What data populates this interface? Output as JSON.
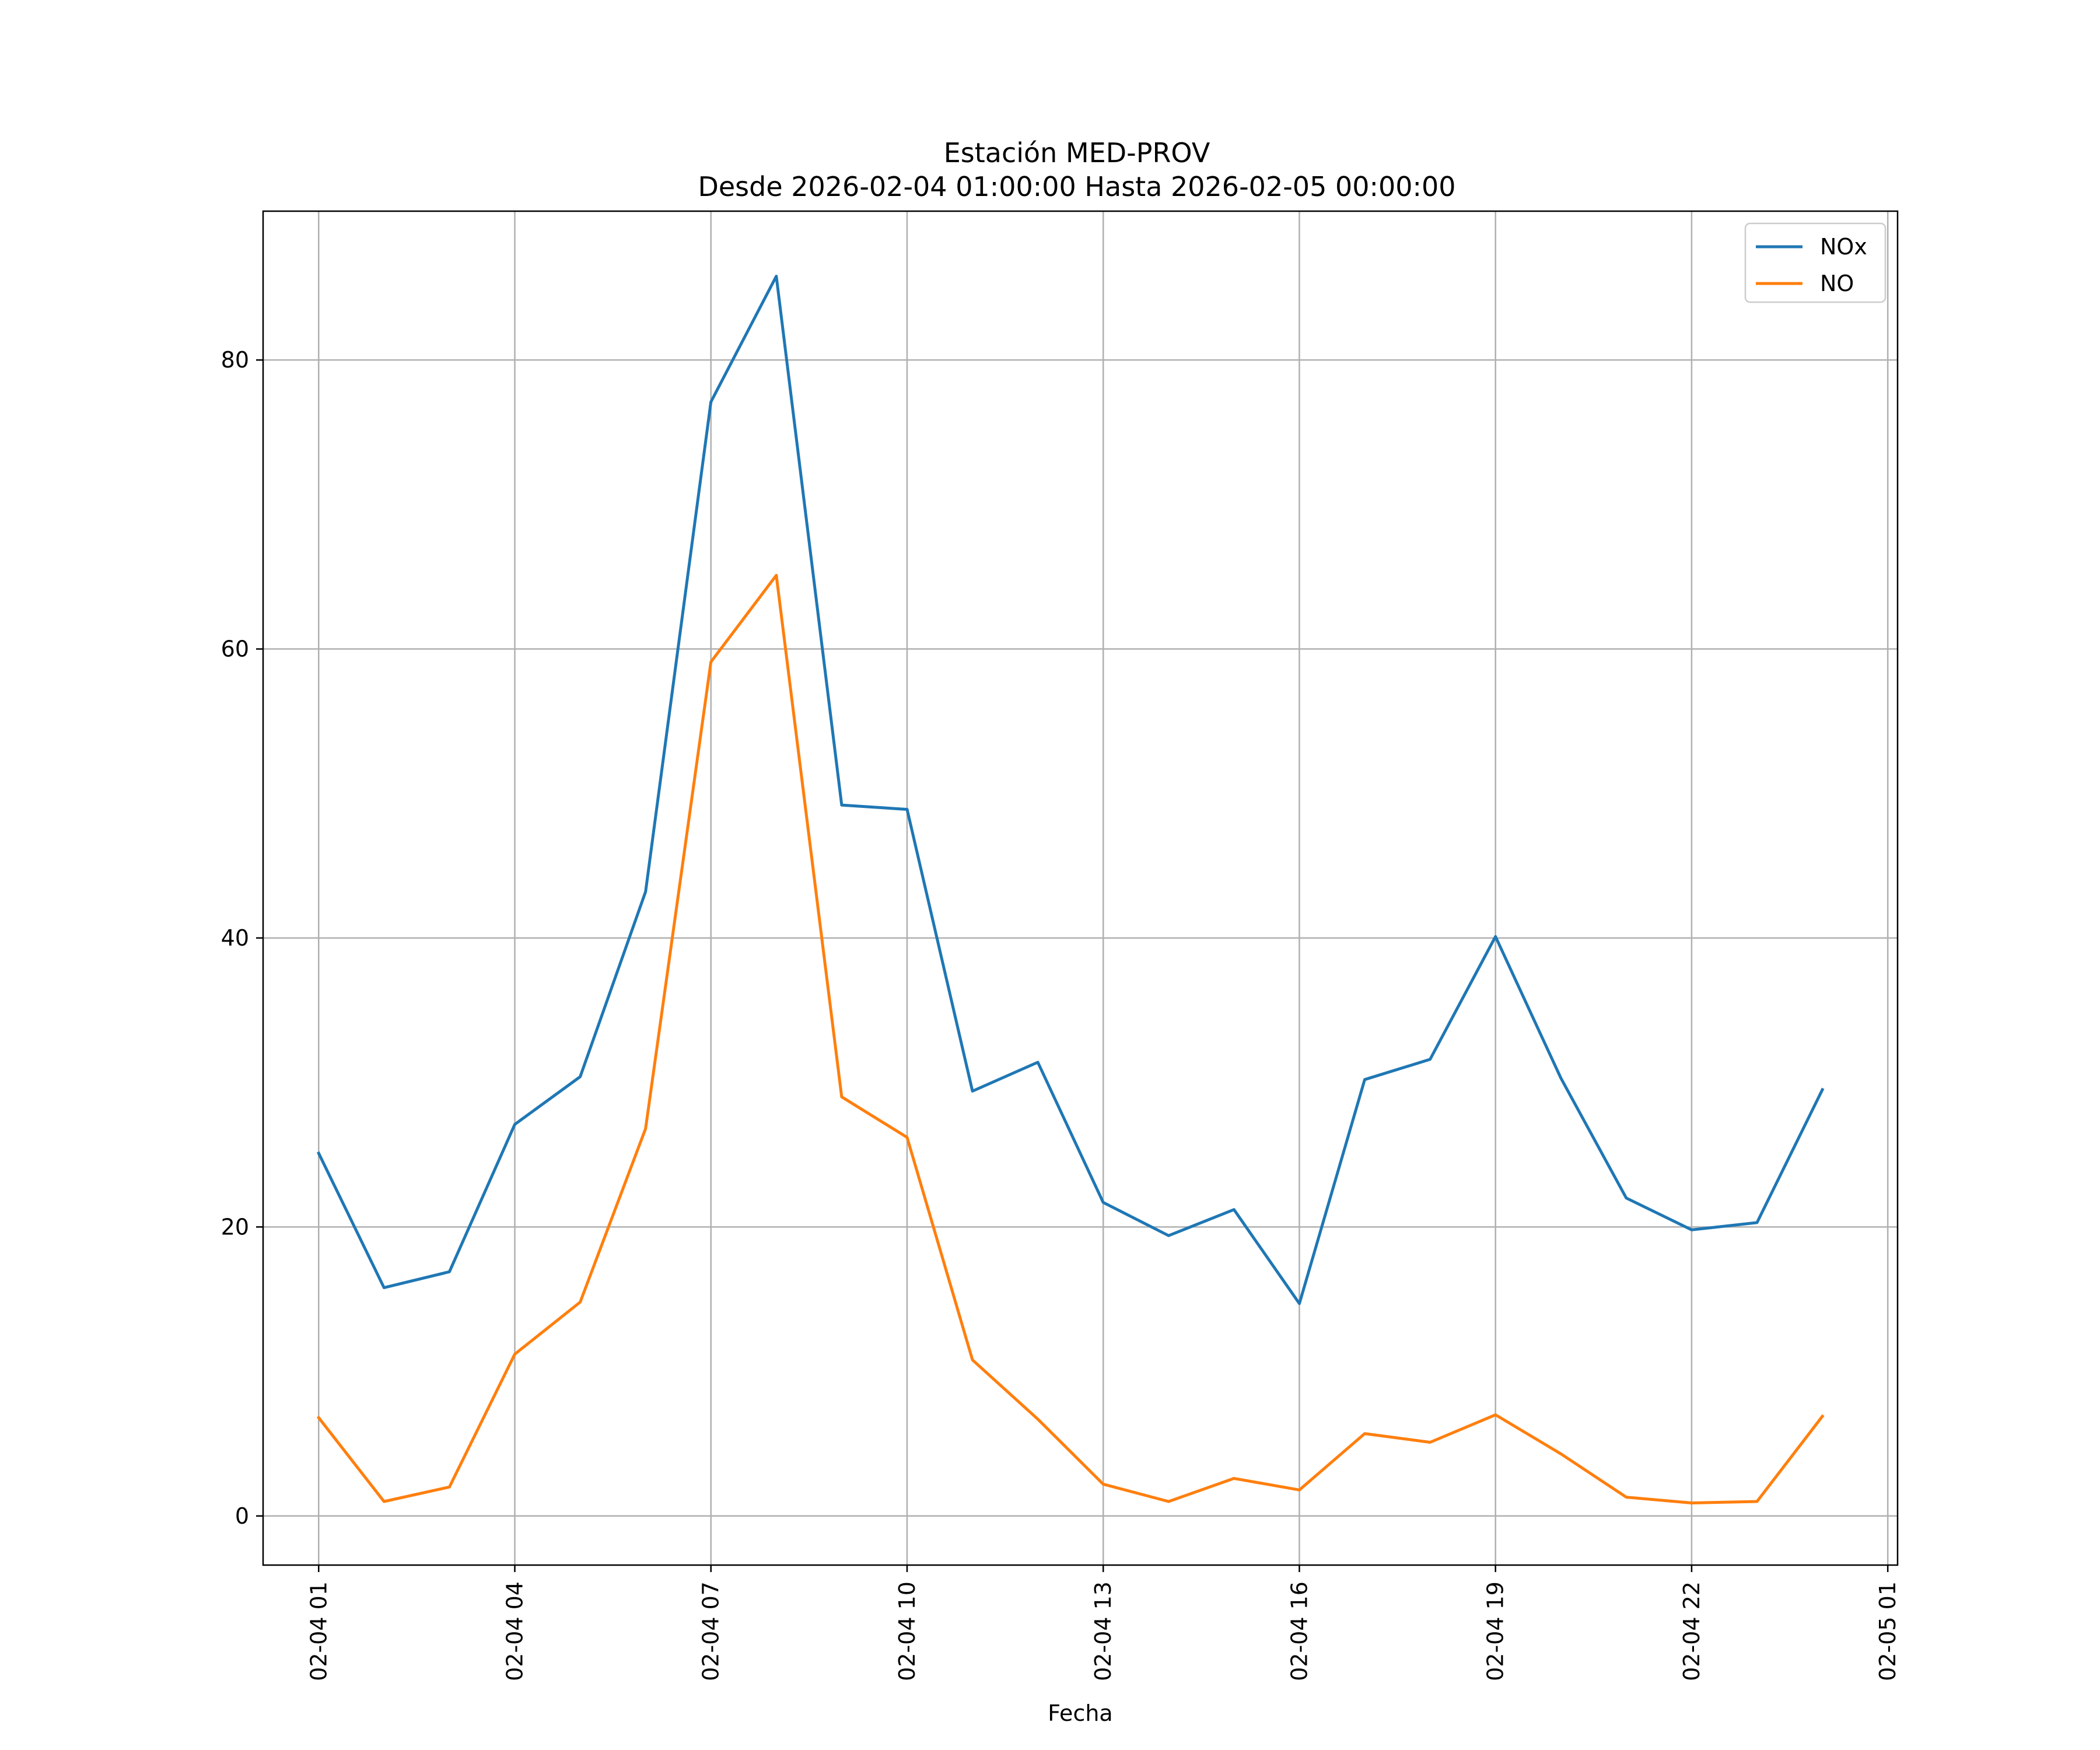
{
  "chart_data": {
    "type": "line",
    "title": "Estación MED-PROV",
    "subtitle": "Desde 2026-02-04 01:00:00 Hasta 2026-02-05 00:00:00",
    "xlabel": "Fecha",
    "ylabel": "",
    "x": [
      "2026-02-04 01:00",
      "2026-02-04 02:00",
      "2026-02-04 03:00",
      "2026-02-04 04:00",
      "2026-02-04 05:00",
      "2026-02-04 06:00",
      "2026-02-04 07:00",
      "2026-02-04 08:00",
      "2026-02-04 09:00",
      "2026-02-04 10:00",
      "2026-02-04 11:00",
      "2026-02-04 12:00",
      "2026-02-04 13:00",
      "2026-02-04 14:00",
      "2026-02-04 15:00",
      "2026-02-04 16:00",
      "2026-02-04 17:00",
      "2026-02-04 18:00",
      "2026-02-04 19:00",
      "2026-02-04 20:00",
      "2026-02-04 21:00",
      "2026-02-04 22:00",
      "2026-02-04 23:00",
      "2026-02-05 00:00"
    ],
    "series": [
      {
        "name": "NOx",
        "color": "#1f77b4",
        "values": [
          25.1,
          15.8,
          16.9,
          27.1,
          30.4,
          43.2,
          77.1,
          85.8,
          49.2,
          48.9,
          29.4,
          31.4,
          21.7,
          19.4,
          21.2,
          14.7,
          30.2,
          31.6,
          40.1,
          30.3,
          22.0,
          19.8,
          20.3,
          29.5
        ]
      },
      {
        "name": "NO",
        "color": "#ff7f0e",
        "values": [
          6.8,
          1.0,
          2.0,
          11.2,
          14.8,
          26.8,
          59.1,
          65.1,
          29.0,
          26.2,
          10.8,
          6.7,
          2.2,
          1.0,
          2.6,
          1.8,
          5.7,
          5.1,
          7.0,
          4.3,
          1.3,
          0.9,
          1.0,
          6.9
        ]
      }
    ],
    "xticks": [
      "02-04 01",
      "02-04 04",
      "02-04 07",
      "02-04 10",
      "02-04 13",
      "02-04 16",
      "02-04 19",
      "02-04 22",
      "02-05 01"
    ],
    "yticks": [
      0,
      20,
      40,
      60,
      80
    ],
    "ylim": [
      -3.4,
      90.3
    ],
    "xlim": [
      "2026-02-04 00:09",
      "2026-02-05 01:09"
    ],
    "grid": true,
    "legend_position": "top-right"
  }
}
